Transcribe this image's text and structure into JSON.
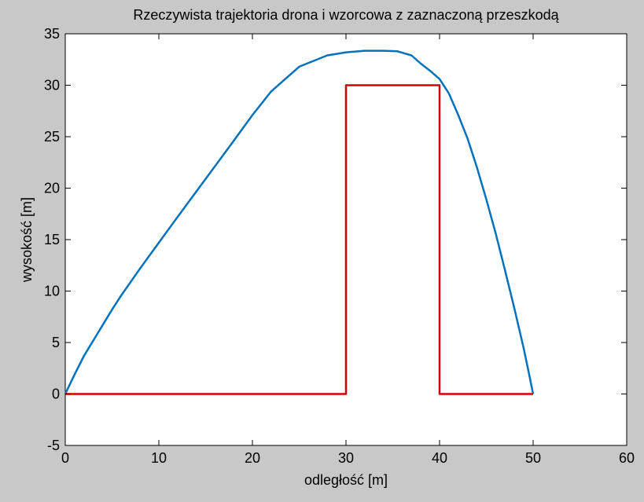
{
  "chart_data": {
    "type": "line",
    "title": "Rzeczywista trajektoria drona i wzorcowa z zaznaczoną przeszkodą",
    "xlabel": "odległość [m]",
    "ylabel": "wysokość [m]",
    "xlim": [
      0,
      60
    ],
    "ylim": [
      -5,
      35
    ],
    "xticks": [
      0,
      10,
      20,
      30,
      40,
      50,
      60
    ],
    "yticks": [
      -5,
      0,
      5,
      10,
      15,
      20,
      25,
      30,
      35
    ],
    "grid": false,
    "legend": null,
    "series": [
      {
        "color": "#0072bd",
        "x": [
          0,
          1,
          2,
          3,
          4,
          5,
          6,
          8,
          10,
          12,
          15,
          18,
          20,
          22,
          25,
          28,
          30,
          32,
          34,
          35.5,
          37,
          38,
          39,
          40,
          41,
          42,
          43,
          44,
          45,
          46,
          47,
          48,
          49,
          49.6,
          50
        ],
        "y": [
          0,
          1.9,
          3.7,
          5.2,
          6.7,
          8.2,
          9.6,
          12.2,
          14.7,
          17.2,
          20.9,
          24.6,
          27.1,
          29.4,
          31.8,
          32.9,
          33.2,
          33.35,
          33.35,
          33.3,
          32.9,
          32.1,
          31.4,
          30.6,
          29.2,
          27.1,
          24.8,
          22.0,
          18.9,
          15.6,
          12.0,
          8.3,
          4.4,
          1.8,
          0
        ]
      },
      {
        "color": "#d00000",
        "x": [
          0,
          30,
          30,
          40,
          40,
          50
        ],
        "y": [
          0,
          0,
          30,
          30,
          0,
          0
        ]
      }
    ]
  }
}
